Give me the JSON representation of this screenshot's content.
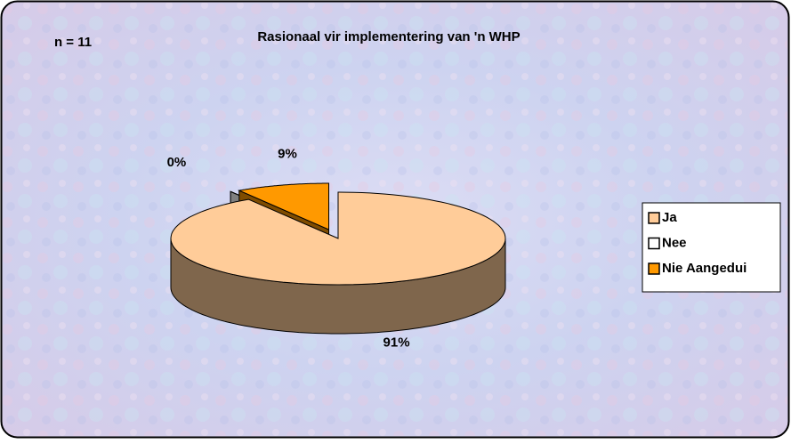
{
  "chart_data": {
    "type": "pie3d",
    "title": "Rasionaal vir implementering van 'n WHP",
    "annotation": "n = 11",
    "categories": [
      "Ja",
      "Nee",
      "Nie Aangedui"
    ],
    "values": [
      91,
      0,
      9
    ],
    "value_labels": [
      "91%",
      "0%",
      "9%"
    ],
    "colors": [
      "#ffcc99",
      "#ffffff",
      "#ff9900"
    ],
    "exploded": [
      false,
      true,
      true
    ],
    "legend": "right"
  }
}
